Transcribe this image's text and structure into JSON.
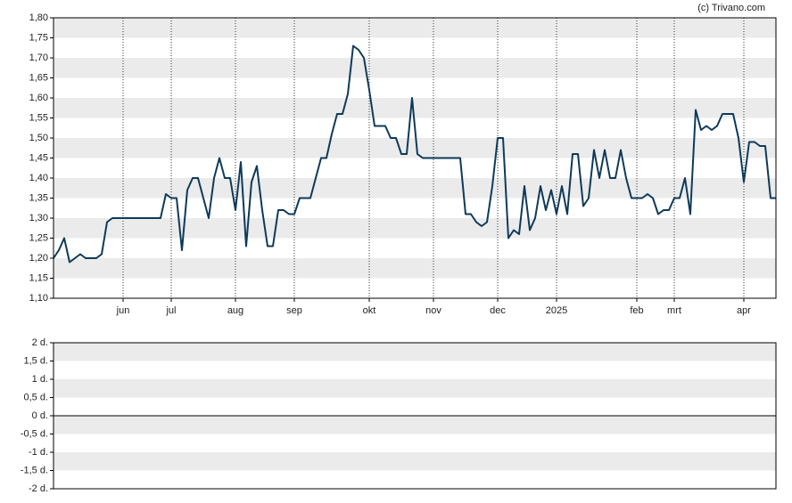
{
  "chart_data": [
    {
      "type": "line",
      "source": "(c) Trivano.com",
      "categories": [
        null,
        null,
        null,
        null,
        null,
        null,
        null,
        null,
        null,
        null,
        null,
        null,
        null,
        "jun",
        null,
        null,
        null,
        null,
        null,
        null,
        null,
        null,
        "jul",
        null,
        null,
        null,
        null,
        null,
        null,
        null,
        null,
        null,
        null,
        null,
        "aug",
        null,
        null,
        null,
        null,
        null,
        null,
        null,
        null,
        null,
        null,
        "sep",
        null,
        null,
        null,
        null,
        null,
        null,
        null,
        null,
        null,
        null,
        null,
        null,
        null,
        "okt",
        null,
        null,
        null,
        null,
        null,
        null,
        null,
        null,
        null,
        null,
        null,
        "nov",
        null,
        null,
        null,
        null,
        null,
        null,
        null,
        null,
        null,
        null,
        null,
        "dec",
        null,
        null,
        null,
        null,
        null,
        null,
        null,
        null,
        null,
        null,
        "2025",
        null,
        null,
        null,
        null,
        null,
        null,
        null,
        null,
        null,
        null,
        null,
        null,
        null,
        null,
        "feb",
        null,
        null,
        null,
        null,
        null,
        null,
        "mrt",
        null,
        null,
        null,
        null,
        null,
        null,
        null,
        null,
        null,
        null,
        null,
        null,
        "apr",
        null,
        null,
        null,
        null,
        null,
        null
      ],
      "series": [
        {
          "color": "#0e3a5a",
          "values": [
            1.2,
            1.22,
            1.25,
            1.19,
            1.2,
            1.21,
            1.2,
            1.2,
            1.2,
            1.21,
            1.29,
            1.3,
            1.3,
            1.3,
            1.3,
            1.3,
            1.3,
            1.3,
            1.3,
            1.3,
            1.3,
            1.36,
            1.35,
            1.35,
            1.22,
            1.37,
            1.4,
            1.4,
            1.35,
            1.3,
            1.4,
            1.45,
            1.4,
            1.4,
            1.32,
            1.44,
            1.23,
            1.39,
            1.43,
            1.32,
            1.23,
            1.23,
            1.32,
            1.32,
            1.31,
            1.31,
            1.35,
            1.35,
            1.35,
            1.4,
            1.45,
            1.45,
            1.51,
            1.56,
            1.56,
            1.61,
            1.73,
            1.72,
            1.7,
            1.62,
            1.53,
            1.53,
            1.53,
            1.5,
            1.5,
            1.46,
            1.46,
            1.6,
            1.46,
            1.45,
            1.45,
            1.45,
            1.45,
            1.45,
            1.45,
            1.45,
            1.45,
            1.31,
            1.31,
            1.29,
            1.28,
            1.29,
            1.38,
            1.5,
            1.5,
            1.25,
            1.27,
            1.26,
            1.38,
            1.27,
            1.3,
            1.38,
            1.32,
            1.37,
            1.31,
            1.38,
            1.31,
            1.46,
            1.46,
            1.33,
            1.35,
            1.47,
            1.4,
            1.47,
            1.4,
            1.4,
            1.47,
            1.4,
            1.35,
            1.35,
            1.35,
            1.36,
            1.35,
            1.31,
            1.32,
            1.32,
            1.35,
            1.35,
            1.4,
            1.31,
            1.57,
            1.52,
            1.53,
            1.52,
            1.53,
            1.56,
            1.56,
            1.56,
            1.5,
            1.39,
            1.49,
            1.49,
            1.48,
            1.48,
            1.35,
            1.35
          ]
        }
      ],
      "ylim": [
        1.1,
        1.8
      ],
      "yticks": [
        {
          "value": 1.1,
          "label": "1,10"
        },
        {
          "value": 1.15,
          "label": "1,15"
        },
        {
          "value": 1.2,
          "label": "1,20"
        },
        {
          "value": 1.25,
          "label": "1,25"
        },
        {
          "value": 1.3,
          "label": "1,30"
        },
        {
          "value": 1.35,
          "label": "1,35"
        },
        {
          "value": 1.4,
          "label": "1,40"
        },
        {
          "value": 1.45,
          "label": "1,45"
        },
        {
          "value": 1.5,
          "label": "1,50"
        },
        {
          "value": 1.55,
          "label": "1,55"
        },
        {
          "value": 1.6,
          "label": "1,60"
        },
        {
          "value": 1.65,
          "label": "1,65"
        },
        {
          "value": 1.7,
          "label": "1,70"
        },
        {
          "value": 1.75,
          "label": "1,75"
        },
        {
          "value": 1.8,
          "label": "1,80"
        }
      ],
      "bands": true
    },
    {
      "type": "bar",
      "ylim": [
        -2,
        2
      ],
      "yticks": [
        {
          "value": -2,
          "label": "-2 d."
        },
        {
          "value": -1.5,
          "label": "-1,5 d."
        },
        {
          "value": -1,
          "label": "-1 d."
        },
        {
          "value": -0.5,
          "label": "-0,5 d."
        },
        {
          "value": 0,
          "label": "0 d."
        },
        {
          "value": 0.5,
          "label": "0,5 d."
        },
        {
          "value": 1,
          "label": "1 d."
        },
        {
          "value": 1.5,
          "label": "1,5 d."
        },
        {
          "value": 2,
          "label": "2 d."
        }
      ],
      "bands": true,
      "zero_line": true
    }
  ]
}
